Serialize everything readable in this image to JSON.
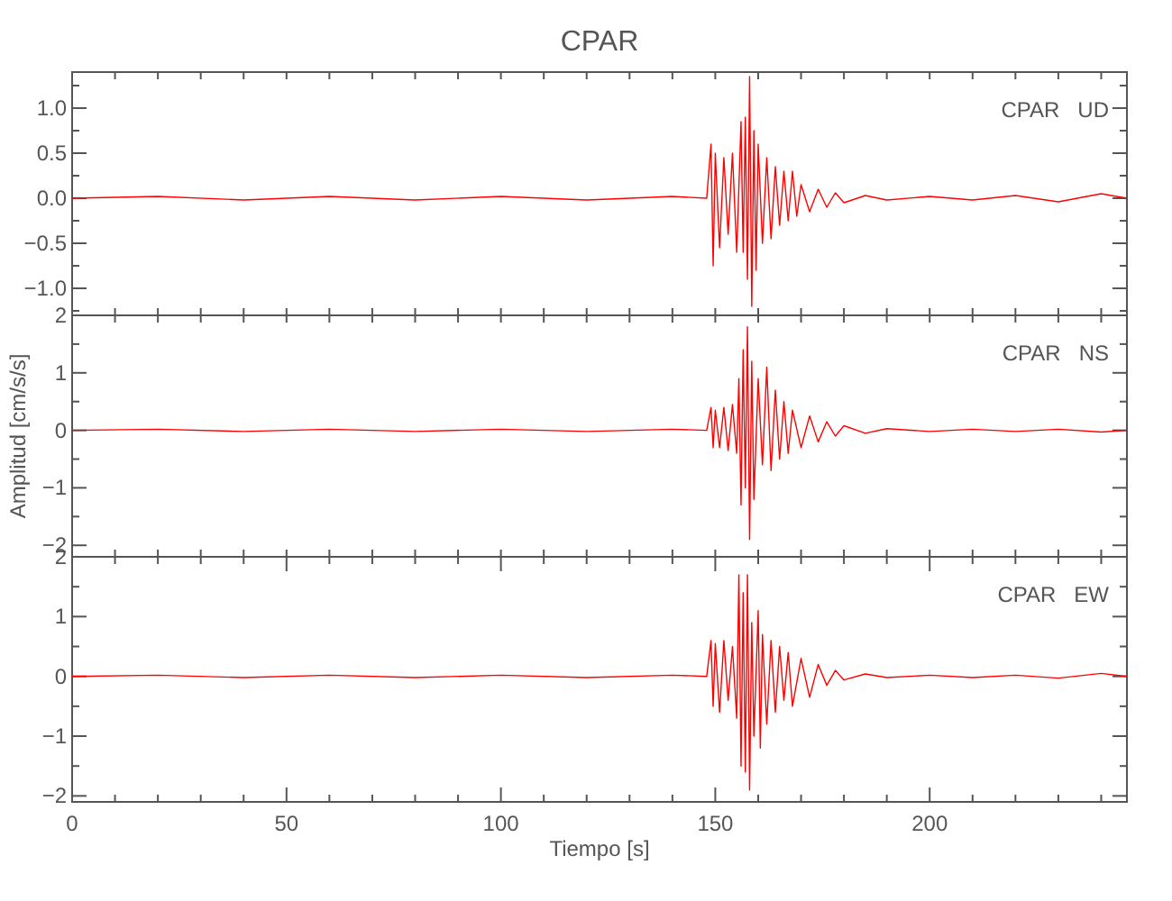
{
  "chart_data": [
    {
      "type": "line",
      "title": "CPAR",
      "annotations": [
        "CPAR   UD"
      ],
      "xlim": [
        0,
        246
      ],
      "xticks": [
        {
          "value": 0,
          "label": null
        },
        {
          "value": 10,
          "label": null
        },
        {
          "value": 20,
          "label": null
        },
        {
          "value": 30,
          "label": null
        },
        {
          "value": 40,
          "label": null
        },
        {
          "value": 50,
          "label": null
        },
        {
          "value": 60,
          "label": null
        },
        {
          "value": 70,
          "label": null
        },
        {
          "value": 80,
          "label": null
        },
        {
          "value": 90,
          "label": null
        },
        {
          "value": 100,
          "label": null
        },
        {
          "value": 110,
          "label": null
        },
        {
          "value": 120,
          "label": null
        },
        {
          "value": 130,
          "label": null
        },
        {
          "value": 140,
          "label": null
        },
        {
          "value": 150,
          "label": null
        },
        {
          "value": 160,
          "label": null
        },
        {
          "value": 170,
          "label": null
        },
        {
          "value": 180,
          "label": null
        },
        {
          "value": 190,
          "label": null
        },
        {
          "value": 200,
          "label": null
        },
        {
          "value": 210,
          "label": null
        },
        {
          "value": 220,
          "label": null
        },
        {
          "value": 230,
          "label": null
        },
        {
          "value": 240,
          "label": null
        }
      ],
      "ylim": [
        -1.3,
        1.4
      ],
      "yticks": [
        {
          "value": -1.25,
          "label": null
        },
        {
          "value": -1.0,
          "label": "−1.0"
        },
        {
          "value": -0.75,
          "label": null
        },
        {
          "value": -0.5,
          "label": "−0.5"
        },
        {
          "value": -0.25,
          "label": null
        },
        {
          "value": 0,
          "label": "0.0"
        },
        {
          "value": 0.25,
          "label": null
        },
        {
          "value": 0.5,
          "label": "0.5"
        },
        {
          "value": 0.75,
          "label": null
        },
        {
          "value": 1.0,
          "label": "1.0"
        },
        {
          "value": 1.25,
          "label": null
        }
      ],
      "tick_labels": "y",
      "x": [
        0,
        20,
        40,
        60,
        80,
        100,
        120,
        140,
        148,
        149,
        149.5,
        150,
        151,
        152,
        153,
        154,
        155,
        156,
        156.5,
        157,
        157.5,
        158,
        158.5,
        159,
        159.5,
        160,
        161,
        162,
        163,
        164,
        165,
        166,
        167,
        168,
        169,
        170,
        172,
        174,
        176,
        178,
        180,
        185,
        190,
        200,
        210,
        220,
        230,
        240,
        246
      ],
      "series": [
        {
          "color": "#ff0000",
          "values": [
            0,
            0.02,
            -0.02,
            0.02,
            -0.02,
            0.02,
            -0.02,
            0.02,
            0,
            0.6,
            -0.75,
            0.5,
            -0.55,
            0.45,
            -0.4,
            0.5,
            -0.6,
            0.85,
            -0.6,
            0.9,
            -0.9,
            1.35,
            -1.2,
            0.75,
            -0.8,
            0.6,
            -0.5,
            0.45,
            -0.45,
            0.35,
            -0.3,
            0.3,
            -0.25,
            0.3,
            -0.2,
            0.15,
            -0.15,
            0.1,
            -0.1,
            0.06,
            -0.05,
            0.03,
            -0.02,
            0.02,
            -0.02,
            0.03,
            -0.04,
            0.05,
            0
          ]
        }
      ]
    },
    {
      "type": "line",
      "annotations": [
        "CPAR   NS"
      ],
      "ylabel": "Amplitud [cm/s/s]",
      "xlim": [
        0,
        246
      ],
      "xticks": [
        {
          "value": 0,
          "label": null
        },
        {
          "value": 10,
          "label": null
        },
        {
          "value": 20,
          "label": null
        },
        {
          "value": 30,
          "label": null
        },
        {
          "value": 40,
          "label": null
        },
        {
          "value": 50,
          "label": null
        },
        {
          "value": 60,
          "label": null
        },
        {
          "value": 70,
          "label": null
        },
        {
          "value": 80,
          "label": null
        },
        {
          "value": 90,
          "label": null
        },
        {
          "value": 100,
          "label": null
        },
        {
          "value": 110,
          "label": null
        },
        {
          "value": 120,
          "label": null
        },
        {
          "value": 130,
          "label": null
        },
        {
          "value": 140,
          "label": null
        },
        {
          "value": 150,
          "label": null
        },
        {
          "value": 160,
          "label": null
        },
        {
          "value": 170,
          "label": null
        },
        {
          "value": 180,
          "label": null
        },
        {
          "value": 190,
          "label": null
        },
        {
          "value": 200,
          "label": null
        },
        {
          "value": 210,
          "label": null
        },
        {
          "value": 220,
          "label": null
        },
        {
          "value": 230,
          "label": null
        },
        {
          "value": 240,
          "label": null
        }
      ],
      "ylim": [
        -2.2,
        2.0
      ],
      "yticks": [
        {
          "value": -2,
          "label": "−2"
        },
        {
          "value": -1.5,
          "label": null
        },
        {
          "value": -1,
          "label": "−1"
        },
        {
          "value": -0.5,
          "label": null
        },
        0,
        {
          "value": 0.5,
          "label": null
        },
        1,
        {
          "value": 1.5,
          "label": null
        },
        2
      ],
      "tick_labels": "y",
      "x": [
        0,
        20,
        40,
        60,
        80,
        100,
        120,
        140,
        148,
        149,
        149.5,
        150,
        151,
        152,
        153,
        154,
        155,
        155.5,
        156,
        156.5,
        157,
        157.5,
        158,
        158.5,
        159,
        160,
        161,
        162,
        163,
        164,
        165,
        166,
        167,
        168,
        170,
        172,
        174,
        176,
        178,
        180,
        185,
        190,
        200,
        210,
        220,
        230,
        240,
        246
      ],
      "series": [
        {
          "color": "#ff0000",
          "values": [
            0,
            0.02,
            -0.02,
            0.02,
            -0.02,
            0.02,
            -0.02,
            0.02,
            0,
            0.4,
            -0.3,
            0.35,
            -0.3,
            0.4,
            -0.35,
            0.45,
            -0.4,
            0.9,
            -1.3,
            1.4,
            -1.0,
            1.8,
            -1.9,
            1.2,
            -1.2,
            0.9,
            -0.6,
            1.1,
            -0.7,
            0.7,
            -0.5,
            0.5,
            -0.4,
            0.35,
            -0.3,
            0.25,
            -0.2,
            0.15,
            -0.1,
            0.08,
            -0.05,
            0.03,
            -0.02,
            0.02,
            -0.02,
            0.02,
            -0.03,
            0
          ]
        }
      ]
    },
    {
      "type": "line",
      "annotations": [
        "CPAR   EW"
      ],
      "xlabel": "Tiempo [s]",
      "xlim": [
        0,
        246
      ],
      "xticks": [
        0,
        {
          "value": 10,
          "label": null
        },
        {
          "value": 20,
          "label": null
        },
        {
          "value": 30,
          "label": null
        },
        {
          "value": 40,
          "label": null
        },
        50,
        {
          "value": 60,
          "label": null
        },
        {
          "value": 70,
          "label": null
        },
        {
          "value": 80,
          "label": null
        },
        {
          "value": 90,
          "label": null
        },
        100,
        {
          "value": 110,
          "label": null
        },
        {
          "value": 120,
          "label": null
        },
        {
          "value": 130,
          "label": null
        },
        {
          "value": 140,
          "label": null
        },
        150,
        {
          "value": 160,
          "label": null
        },
        {
          "value": 170,
          "label": null
        },
        {
          "value": 180,
          "label": null
        },
        {
          "value": 190,
          "label": null
        },
        200,
        {
          "value": 210,
          "label": null
        },
        {
          "value": 220,
          "label": null
        },
        {
          "value": 230,
          "label": null
        },
        {
          "value": 240,
          "label": null
        }
      ],
      "ylim": [
        -2.1,
        2.0
      ],
      "yticks": [
        {
          "value": -2,
          "label": "−2"
        },
        {
          "value": -1.5,
          "label": null
        },
        {
          "value": -1,
          "label": "−1"
        },
        {
          "value": -0.5,
          "label": null
        },
        0,
        {
          "value": 0.5,
          "label": null
        },
        1,
        {
          "value": 1.5,
          "label": null
        },
        2
      ],
      "x": [
        0,
        20,
        40,
        60,
        80,
        100,
        120,
        140,
        148,
        149,
        149.5,
        150,
        151,
        152,
        153,
        154,
        155,
        155.5,
        156,
        156.5,
        157,
        157.5,
        158,
        158.5,
        159,
        160,
        160.5,
        161,
        162,
        163,
        164,
        165,
        166,
        167,
        168,
        170,
        172,
        174,
        176,
        178,
        180,
        185,
        190,
        200,
        210,
        220,
        230,
        240,
        246
      ],
      "series": [
        {
          "color": "#ff0000",
          "values": [
            0,
            0.02,
            -0.02,
            0.02,
            -0.02,
            0.02,
            -0.02,
            0.02,
            0,
            0.6,
            -0.5,
            0.55,
            -0.6,
            0.6,
            -0.4,
            0.5,
            -0.7,
            1.7,
            -1.5,
            1.4,
            -1.6,
            1.7,
            -1.9,
            0.9,
            -1.0,
            1.1,
            -1.2,
            0.7,
            -0.8,
            0.6,
            -0.6,
            0.5,
            -0.4,
            0.4,
            -0.5,
            0.3,
            -0.35,
            0.2,
            -0.15,
            0.1,
            -0.06,
            0.04,
            -0.02,
            0.02,
            -0.02,
            0.02,
            -0.03,
            0.05,
            0
          ]
        }
      ]
    }
  ]
}
